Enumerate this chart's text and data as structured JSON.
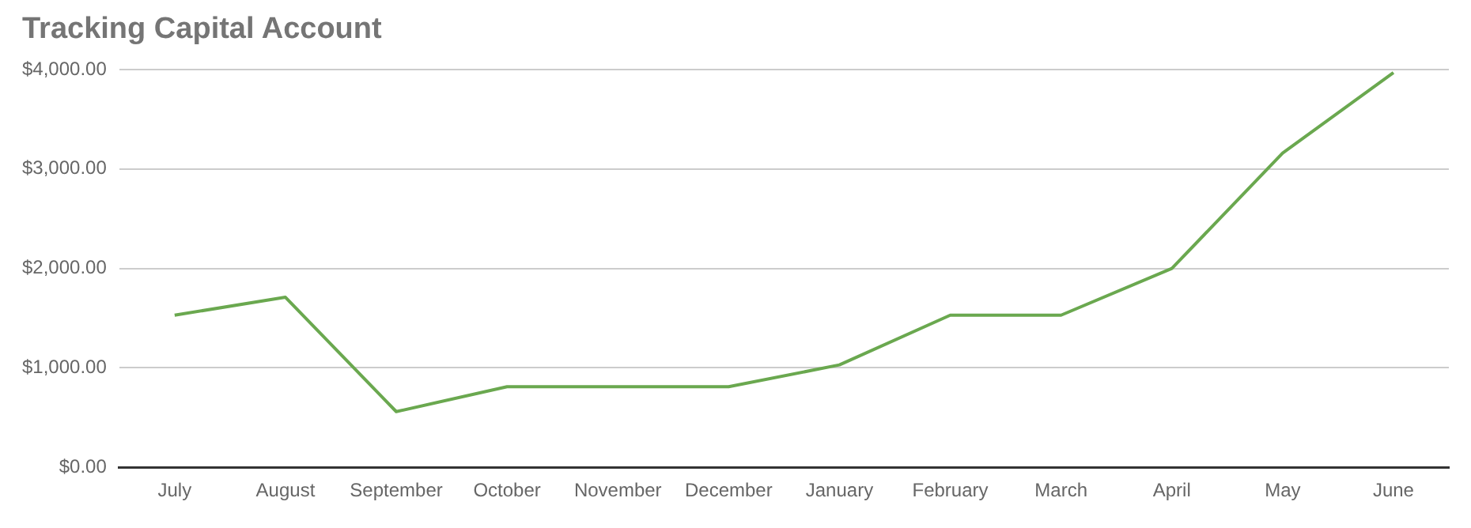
{
  "chart_data": {
    "type": "line",
    "title": "Tracking Capital Account",
    "categories": [
      "July",
      "August",
      "September",
      "October",
      "November",
      "December",
      "January",
      "February",
      "March",
      "April",
      "May",
      "June"
    ],
    "series": [
      {
        "color": "#6aa84f",
        "values": [
          1530,
          1710,
          560,
          810,
          810,
          810,
          1030,
          1530,
          1530,
          2000,
          3160,
          3970
        ]
      }
    ],
    "ylim": [
      0,
      4000
    ],
    "yticks": [
      {
        "value": 0,
        "label": "$0.00"
      },
      {
        "value": 1000,
        "label": "$1,000.00"
      },
      {
        "value": 2000,
        "label": "$2,000.00"
      },
      {
        "value": 3000,
        "label": "$3,000.00"
      },
      {
        "value": 4000,
        "label": "$4,000.00"
      }
    ],
    "grid": "y",
    "legend": false,
    "marker": "none",
    "line_style": "solid"
  }
}
